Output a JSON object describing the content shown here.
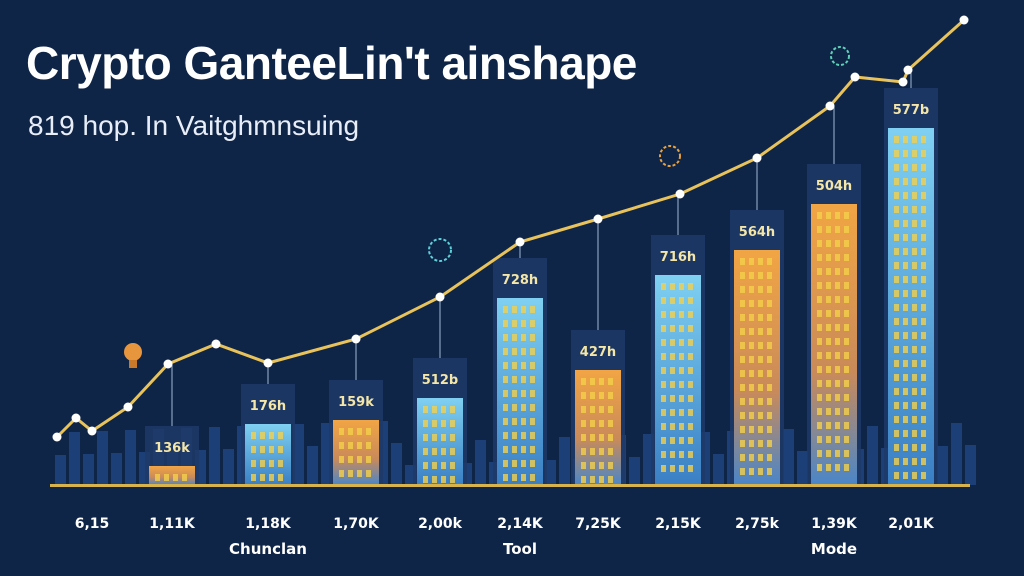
{
  "title": "Crypto GanteeLin't ainshape",
  "subtitle": "819 hop. In Vaitghmnsuing",
  "colors": {
    "background": "#0f2547",
    "line": "#e8c25a",
    "bar_blue": "#5fb8e6",
    "bar_orange": "#e8963e",
    "axis": "#d8b24a"
  },
  "chart_data": {
    "type": "bar",
    "title": "Crypto GanteeLin't ainshape",
    "subtitle": "819 hop. In Vaitghmnsuing",
    "xlabel": "",
    "ylabel": "",
    "ylim": [
      0,
      470
    ],
    "xlim": [
      0,
      1000
    ],
    "grid": false,
    "x_tick_labels": [
      {
        "x": 92,
        "label": "6,15"
      },
      {
        "x": 172,
        "label": "1,11K"
      },
      {
        "x": 268,
        "label": "1,18K"
      },
      {
        "x": 356,
        "label": "1,70K"
      },
      {
        "x": 440,
        "label": "2,00k"
      },
      {
        "x": 520,
        "label": "2,14K"
      },
      {
        "x": 598,
        "label": "7,25K"
      },
      {
        "x": 678,
        "label": "2,15K"
      },
      {
        "x": 757,
        "label": "2,75k"
      },
      {
        "x": 834,
        "label": "1,39K"
      },
      {
        "x": 911,
        "label": "2,01K"
      }
    ],
    "group_labels": [
      {
        "x": 268,
        "label": "Chunclan"
      },
      {
        "x": 520,
        "label": "Tool"
      },
      {
        "x": 834,
        "label": "Mode"
      }
    ],
    "bars": [
      {
        "x": 172,
        "value": 19,
        "label": "136k",
        "color": "orange"
      },
      {
        "x": 268,
        "value": 61,
        "label": "176h",
        "color": "blue"
      },
      {
        "x": 356,
        "value": 65,
        "label": "159k",
        "color": "orange"
      },
      {
        "x": 440,
        "value": 87,
        "label": "512b",
        "color": "blue"
      },
      {
        "x": 520,
        "value": 187,
        "label": "728h",
        "color": "blue"
      },
      {
        "x": 598,
        "value": 115,
        "label": "427h",
        "color": "orange"
      },
      {
        "x": 678,
        "value": 210,
        "label": "716h",
        "color": "blue"
      },
      {
        "x": 757,
        "value": 235,
        "label": "564h",
        "color": "orange"
      },
      {
        "x": 834,
        "value": 281,
        "label": "504h",
        "color": "orange"
      },
      {
        "x": 911,
        "value": 357,
        "label": "577b",
        "color": "blue"
      }
    ],
    "series": [
      {
        "name": "trend",
        "type": "line",
        "points": [
          [
            57,
            48
          ],
          [
            76,
            67
          ],
          [
            92,
            54
          ],
          [
            128,
            78
          ],
          [
            168,
            121
          ],
          [
            216,
            141
          ],
          [
            268,
            122
          ],
          [
            356,
            146
          ],
          [
            440,
            188
          ],
          [
            520,
            243
          ],
          [
            598,
            266
          ],
          [
            680,
            291
          ],
          [
            757,
            327
          ],
          [
            830,
            379
          ],
          [
            855,
            408
          ],
          [
            903,
            403
          ],
          [
            908,
            415
          ],
          [
            964,
            465
          ]
        ]
      }
    ]
  }
}
